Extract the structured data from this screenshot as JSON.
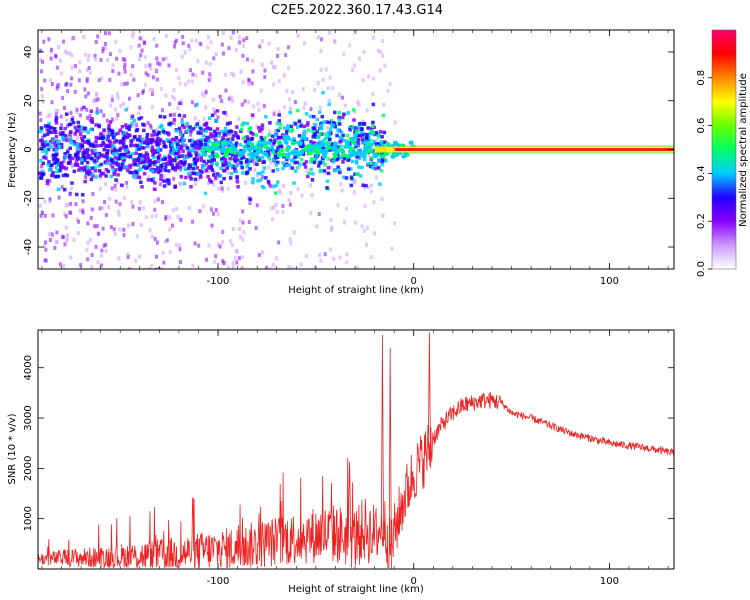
{
  "title": "C2E5.2022.360.17.43.G14",
  "chart_data": [
    {
      "type": "heatmap",
      "title": "C2E5.2022.360.17.43.G14",
      "xlabel": "Height of straight line (km)",
      "ylabel": "Frequency (Hz)",
      "xlim": [
        -192,
        133
      ],
      "ylim": [
        -49,
        49
      ],
      "xticks": [
        -100,
        0,
        100
      ],
      "xtick_labels": [
        "-100",
        "0",
        "100"
      ],
      "yticks": [
        -40,
        -20,
        0,
        20,
        40
      ],
      "ytick_labels": [
        "-40",
        "-20",
        "0",
        "20",
        "40"
      ],
      "colorbar": {
        "label": "Normalized spectral amplitude",
        "range": [
          0.0,
          1.0
        ],
        "ticks": [
          0.0,
          0.2,
          0.4,
          0.6,
          0.8
        ],
        "tick_labels": [
          "0.0",
          "0.2",
          "0.4",
          "0.6",
          "0.8"
        ],
        "colormap": [
          "#ffffff",
          "#cc99ff",
          "#8800ff",
          "#2200ff",
          "#00ccff",
          "#00ff66",
          "#66ff00",
          "#ffff00",
          "#ff8800",
          "#ff0000",
          "#ff0066"
        ]
      },
      "features": {
        "dominant_line_frequency_hz": 0,
        "noisy_region_x_range": [
          -192,
          -20
        ],
        "clean_line_x_range": [
          -20,
          133
        ]
      }
    },
    {
      "type": "line",
      "xlabel": "Height of straight line (km)",
      "ylabel": "SNR (10 * v/v)",
      "xlim": [
        -192,
        133
      ],
      "ylim": [
        0,
        4750
      ],
      "xticks": [
        -100,
        0,
        100
      ],
      "xtick_labels": [
        "-100",
        "0",
        "100"
      ],
      "yticks": [
        1000,
        2000,
        3000,
        4000
      ],
      "ytick_labels": [
        "1000",
        "2000",
        "3000",
        "4000"
      ],
      "color": "#ee2222",
      "series": [
        {
          "name": "SNR",
          "x": [
            -192,
            -180,
            -160,
            -140,
            -120,
            -110,
            -100,
            -90,
            -80,
            -70,
            -60,
            -50,
            -40,
            -30,
            -25,
            -20,
            -15,
            -12,
            -8,
            -5,
            0,
            5,
            8,
            10,
            15,
            20,
            25,
            30,
            35,
            40,
            45,
            50,
            60,
            70,
            80,
            90,
            100,
            110,
            120,
            133
          ],
          "y": [
            200,
            220,
            230,
            260,
            300,
            350,
            380,
            420,
            480,
            550,
            620,
            680,
            700,
            600,
            800,
            650,
            900,
            400,
            1000,
            1400,
            1900,
            2200,
            2400,
            2600,
            2900,
            3100,
            3250,
            3300,
            3350,
            3350,
            3300,
            3100,
            3000,
            2850,
            2700,
            2600,
            2500,
            2450,
            2400,
            2300
          ]
        }
      ],
      "peaks": [
        {
          "x": -16,
          "y": 4650
        },
        {
          "x": -12,
          "y": 4400
        },
        {
          "x": 8,
          "y": 4700
        }
      ]
    }
  ]
}
